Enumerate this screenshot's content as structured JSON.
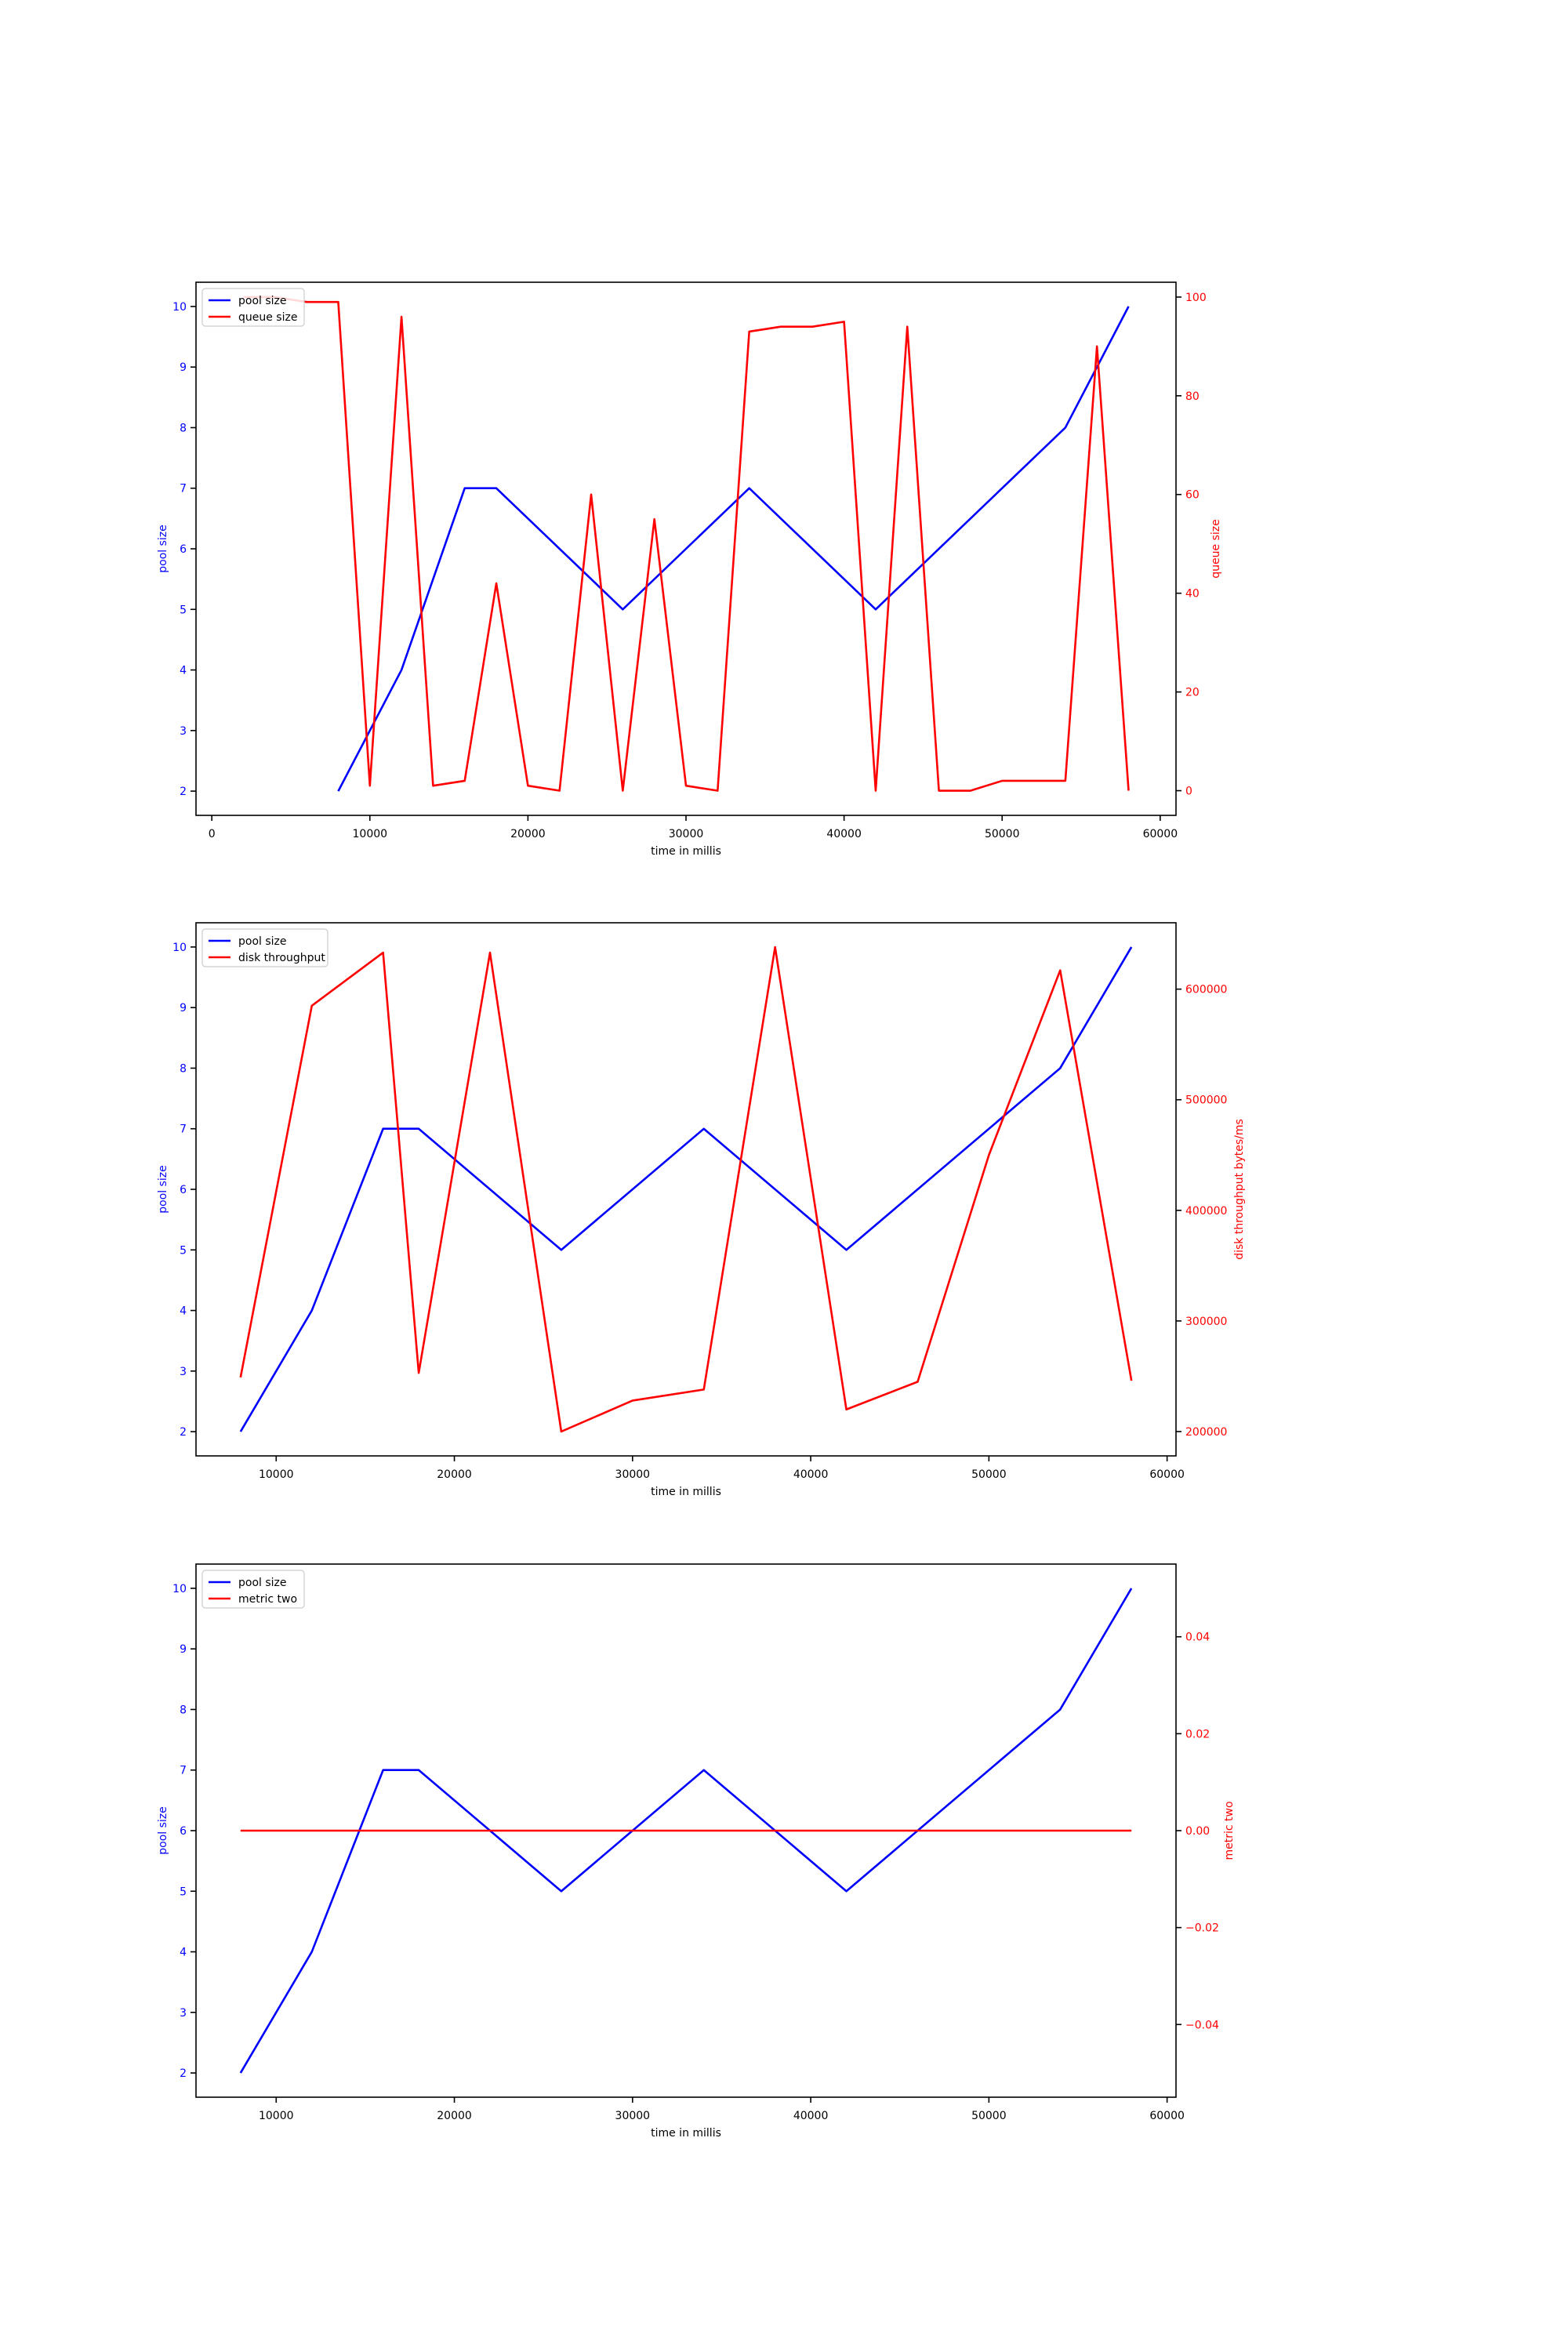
{
  "chart_data": [
    {
      "type": "line",
      "xlabel": "time in millis",
      "ylabel_left": "pool size",
      "ylabel_right": "queue size",
      "xlim": [
        -1000,
        61000
      ],
      "ylim_left": [
        1.6,
        10.4
      ],
      "ylim_right": [
        -5,
        103
      ],
      "xticks": [
        0,
        10000,
        20000,
        30000,
        40000,
        50000,
        60000
      ],
      "yticks_left": [
        2,
        3,
        4,
        5,
        6,
        7,
        8,
        9,
        10
      ],
      "yticks_right": [
        0,
        20,
        40,
        60,
        80,
        100
      ],
      "legend_location": "upper left",
      "grid": false,
      "series": [
        {
          "name": "pool size",
          "axis": "left",
          "color": "#0000ff",
          "x": [
            8000,
            12000,
            16000,
            18000,
            26000,
            34000,
            42000,
            54000,
            58000
          ],
          "y": [
            2,
            4,
            7,
            7,
            5,
            7,
            5,
            8,
            10
          ]
        },
        {
          "name": "queue size",
          "axis": "right",
          "color": "#ff0000",
          "x": [
            2000,
            4000,
            6000,
            8000,
            10000,
            12000,
            14000,
            16000,
            18000,
            20000,
            22000,
            24000,
            26000,
            28000,
            30000,
            32000,
            34000,
            36000,
            38000,
            40000,
            42000,
            44000,
            46000,
            48000,
            50000,
            52000,
            54000,
            56000,
            58000
          ],
          "y": [
            100,
            100,
            99,
            99,
            1,
            96,
            1,
            2,
            42,
            1,
            0,
            60,
            0,
            55,
            1,
            0,
            93,
            94,
            94,
            95,
            0,
            94,
            0,
            0,
            2,
            2,
            2,
            90,
            0
          ]
        }
      ]
    },
    {
      "type": "line",
      "xlabel": "time in millis",
      "ylabel_left": "pool size",
      "ylabel_right": "disk throughput bytes/ms",
      "xlim": [
        5500,
        60500
      ],
      "ylim_left": [
        1.6,
        10.4
      ],
      "ylim_right": [
        178000,
        660000
      ],
      "xticks": [
        10000,
        20000,
        30000,
        40000,
        50000,
        60000
      ],
      "yticks_left": [
        2,
        3,
        4,
        5,
        6,
        7,
        8,
        9,
        10
      ],
      "yticks_right": [
        200000,
        300000,
        400000,
        500000,
        600000
      ],
      "legend_location": "upper left",
      "grid": false,
      "series": [
        {
          "name": "pool size",
          "axis": "left",
          "color": "#0000ff",
          "x": [
            8000,
            12000,
            16000,
            18000,
            26000,
            34000,
            42000,
            54000,
            58000
          ],
          "y": [
            2,
            4,
            7,
            7,
            5,
            7,
            5,
            8,
            10
          ]
        },
        {
          "name": "disk throughput",
          "axis": "right",
          "color": "#ff0000",
          "x": [
            8000,
            12000,
            16000,
            18000,
            22000,
            26000,
            30000,
            34000,
            38000,
            42000,
            46000,
            50000,
            54000,
            58000
          ],
          "y": [
            249000,
            585000,
            633000,
            253000,
            633000,
            200000,
            228000,
            238000,
            638000,
            220000,
            245000,
            450000,
            617000,
            246000
          ]
        }
      ]
    },
    {
      "type": "line",
      "xlabel": "time in millis",
      "ylabel_left": "pool size",
      "ylabel_right": "metric two",
      "xlim": [
        5500,
        60500
      ],
      "ylim_left": [
        1.6,
        10.4
      ],
      "ylim_right": [
        -0.055,
        0.055
      ],
      "xticks": [
        10000,
        20000,
        30000,
        40000,
        50000,
        60000
      ],
      "yticks_left": [
        2,
        3,
        4,
        5,
        6,
        7,
        8,
        9,
        10
      ],
      "yticks_right": [
        -0.04,
        -0.02,
        0.0,
        0.02,
        0.04
      ],
      "ytick_labels_right": [
        "−0.04",
        "−0.02",
        "0.00",
        "0.02",
        "0.04"
      ],
      "legend_location": "upper left",
      "grid": false,
      "series": [
        {
          "name": "pool size",
          "axis": "left",
          "color": "#0000ff",
          "x": [
            8000,
            12000,
            16000,
            18000,
            26000,
            34000,
            42000,
            54000,
            58000
          ],
          "y": [
            2,
            4,
            7,
            7,
            5,
            7,
            5,
            8,
            10
          ]
        },
        {
          "name": "metric two",
          "axis": "right",
          "color": "#ff0000",
          "x": [
            8000,
            58000
          ],
          "y": [
            0,
            0
          ]
        }
      ]
    }
  ]
}
